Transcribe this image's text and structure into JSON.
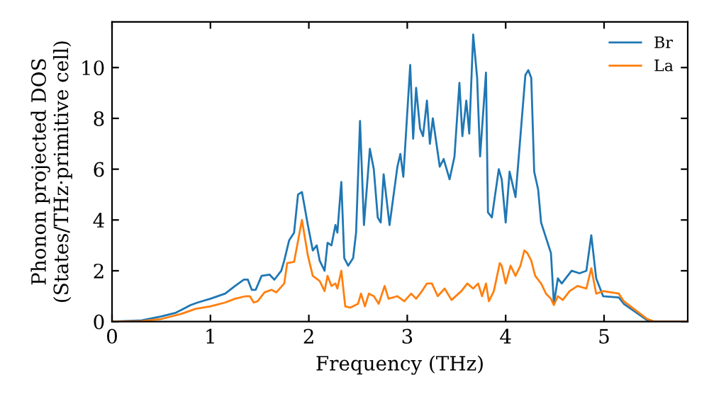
{
  "chart_data": {
    "type": "line",
    "xlabel": "Frequency (THz)",
    "ylabel": "Phonon projected DOS\n(States/THz·primitive cell)",
    "xlim": [
      0,
      5.85
    ],
    "ylim": [
      0,
      11.8
    ],
    "xticks": [
      0,
      1,
      2,
      3,
      4,
      5
    ],
    "yticks": [
      0,
      2,
      4,
      6,
      8,
      10
    ],
    "grid": false,
    "legend": "top right",
    "marker": "none",
    "line_style": "solid",
    "series": [
      {
        "name": "Br",
        "color": "#1f77b4",
        "x": [
          0,
          0.3,
          0.5,
          0.65,
          0.8,
          0.87,
          1.0,
          1.15,
          1.25,
          1.34,
          1.38,
          1.42,
          1.46,
          1.52,
          1.6,
          1.65,
          1.72,
          1.75,
          1.8,
          1.85,
          1.89,
          1.93,
          1.99,
          2.04,
          2.08,
          2.11,
          2.16,
          2.19,
          2.23,
          2.27,
          2.29,
          2.33,
          2.36,
          2.4,
          2.45,
          2.48,
          2.52,
          2.56,
          2.62,
          2.66,
          2.7,
          2.73,
          2.76,
          2.82,
          2.9,
          2.93,
          2.96,
          3.03,
          3.06,
          3.09,
          3.13,
          3.16,
          3.2,
          3.23,
          3.26,
          3.33,
          3.37,
          3.43,
          3.48,
          3.53,
          3.56,
          3.6,
          3.63,
          3.67,
          3.71,
          3.74,
          3.8,
          3.82,
          3.86,
          3.93,
          3.96,
          4.0,
          4.04,
          4.1,
          4.2,
          4.23,
          4.26,
          4.29,
          4.33,
          4.36,
          4.46,
          4.49,
          4.53,
          4.57,
          4.67,
          4.75,
          4.82,
          4.87,
          4.92,
          4.99,
          5.15,
          5.2,
          5.44,
          5.51,
          5.85
        ],
        "values": [
          0,
          0.05,
          0.2,
          0.35,
          0.65,
          0.75,
          0.9,
          1.1,
          1.4,
          1.65,
          1.65,
          1.25,
          1.25,
          1.8,
          1.85,
          1.65,
          2.0,
          2.4,
          3.2,
          3.5,
          5.0,
          5.1,
          3.8,
          2.8,
          3.0,
          2.4,
          2.0,
          3.1,
          3.0,
          3.8,
          3.5,
          5.5,
          2.5,
          2.2,
          2.5,
          3.5,
          7.9,
          3.8,
          6.8,
          6.0,
          4.1,
          3.9,
          5.8,
          3.8,
          6.1,
          6.6,
          5.7,
          10.1,
          7.2,
          9.2,
          7.6,
          7.3,
          8.7,
          7.0,
          8.0,
          6.1,
          6.4,
          5.6,
          6.5,
          9.4,
          7.3,
          8.7,
          7.4,
          11.3,
          9.6,
          6.5,
          9.8,
          4.3,
          4.1,
          6.0,
          5.6,
          3.9,
          5.9,
          4.9,
          9.7,
          9.9,
          9.6,
          5.9,
          5.2,
          3.9,
          2.7,
          0.7,
          1.7,
          1.5,
          2.0,
          1.9,
          2.0,
          3.4,
          1.7,
          1.0,
          0.95,
          0.7,
          0.05,
          0,
          0
        ]
      },
      {
        "name": "La",
        "color": "#ff7f0e",
        "x": [
          0,
          0.3,
          0.5,
          0.7,
          0.85,
          1.0,
          1.15,
          1.25,
          1.36,
          1.4,
          1.44,
          1.48,
          1.55,
          1.62,
          1.67,
          1.75,
          1.78,
          1.85,
          1.93,
          1.99,
          2.04,
          2.11,
          2.16,
          2.19,
          2.23,
          2.27,
          2.29,
          2.33,
          2.37,
          2.42,
          2.5,
          2.53,
          2.57,
          2.61,
          2.66,
          2.71,
          2.77,
          2.81,
          2.9,
          2.97,
          3.04,
          3.09,
          3.15,
          3.2,
          3.25,
          3.31,
          3.38,
          3.45,
          3.55,
          3.61,
          3.67,
          3.72,
          3.76,
          3.8,
          3.83,
          3.88,
          3.94,
          3.96,
          4.0,
          4.05,
          4.1,
          4.15,
          4.19,
          4.22,
          4.26,
          4.3,
          4.36,
          4.41,
          4.46,
          4.49,
          4.53,
          4.58,
          4.65,
          4.73,
          4.82,
          4.87,
          4.92,
          4.99,
          5.15,
          5.2,
          5.44,
          5.51,
          5.85
        ],
        "values": [
          0,
          0.02,
          0.1,
          0.3,
          0.5,
          0.6,
          0.75,
          0.9,
          1.0,
          1.0,
          0.75,
          0.8,
          1.15,
          1.25,
          1.15,
          1.5,
          2.3,
          2.35,
          4.0,
          2.6,
          1.8,
          1.6,
          1.2,
          1.8,
          1.4,
          1.5,
          1.3,
          2.0,
          0.6,
          0.55,
          0.7,
          1.1,
          0.6,
          1.1,
          1.0,
          0.7,
          1.4,
          0.9,
          1.0,
          0.8,
          1.1,
          0.9,
          1.2,
          1.5,
          1.5,
          1.0,
          1.3,
          0.85,
          1.2,
          1.5,
          1.3,
          1.5,
          1.0,
          1.5,
          0.8,
          1.2,
          2.3,
          2.2,
          1.5,
          2.2,
          1.8,
          2.2,
          2.8,
          2.7,
          2.4,
          1.8,
          1.5,
          1.1,
          0.9,
          0.65,
          1.0,
          0.85,
          1.2,
          1.4,
          1.3,
          2.1,
          1.1,
          1.2,
          1.1,
          0.8,
          0.1,
          0,
          0
        ]
      }
    ]
  }
}
